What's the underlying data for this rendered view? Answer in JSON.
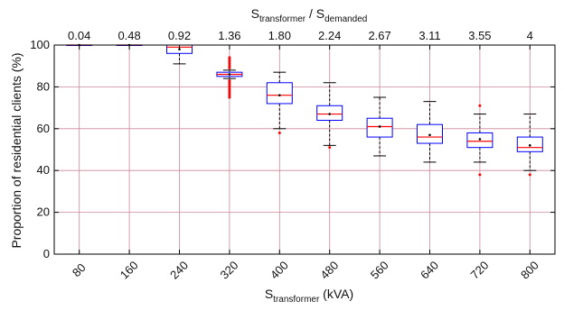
{
  "chart_data": {
    "type": "box",
    "xlabel_main": "S",
    "xlabel_sub": "transformer",
    "xlabel_unit": " (kVA)",
    "ylabel": "Proportion of residential clients (%)",
    "top_axis": {
      "t1": "S",
      "t1_sub": "transformer",
      "sep": " / S",
      "t2_sub": "demanded",
      "ticks": [
        "0.04",
        "0.48",
        "0.92",
        "1.36",
        "1.80",
        "2.24",
        "2.67",
        "3.11",
        "3.55",
        "4"
      ]
    },
    "categories": [
      "80",
      "160",
      "240",
      "320",
      "400",
      "480",
      "560",
      "640",
      "720",
      "800"
    ],
    "ylim": [
      0,
      100
    ],
    "yticks": [
      "0",
      "20",
      "40",
      "60",
      "80",
      "100"
    ],
    "grid": true,
    "colors": {
      "box": "#0000ff",
      "median": "#ff0000",
      "whisker": "#000000",
      "grid": "#cc8899",
      "outlier": "#ff0000"
    },
    "boxes": [
      {
        "min": 100,
        "q1": 100,
        "median": 100,
        "q3": 100,
        "max": 100,
        "mean": 100,
        "outliers": []
      },
      {
        "min": 100,
        "q1": 100,
        "median": 100,
        "q3": 100,
        "max": 100,
        "mean": 100,
        "outliers": []
      },
      {
        "min": 91,
        "q1": 96,
        "median": 99,
        "q3": 100,
        "max": 100,
        "mean": 98,
        "outliers": []
      },
      {
        "min": 84,
        "q1": 85,
        "median": 86,
        "q3": 87,
        "max": 88,
        "mean": 86,
        "outliers": [
          75,
          76,
          77,
          78,
          79,
          80,
          81,
          82,
          83,
          89,
          90,
          91,
          92,
          93,
          94
        ]
      },
      {
        "min": 60,
        "q1": 72,
        "median": 76,
        "q3": 82,
        "max": 87,
        "mean": 76,
        "outliers": [
          58
        ]
      },
      {
        "min": 52,
        "q1": 64,
        "median": 67,
        "q3": 71,
        "max": 82,
        "mean": 67,
        "outliers": [
          51
        ]
      },
      {
        "min": 47,
        "q1": 56,
        "median": 61,
        "q3": 65,
        "max": 75,
        "mean": 61,
        "outliers": []
      },
      {
        "min": 44,
        "q1": 53,
        "median": 56,
        "q3": 62,
        "max": 73,
        "mean": 57,
        "outliers": []
      },
      {
        "min": 44,
        "q1": 51,
        "median": 54,
        "q3": 58,
        "max": 67,
        "mean": 55,
        "outliers": [
          38,
          71
        ]
      },
      {
        "min": 40,
        "q1": 49,
        "median": 51,
        "q3": 56,
        "max": 67,
        "mean": 52,
        "outliers": [
          38
        ]
      }
    ]
  }
}
